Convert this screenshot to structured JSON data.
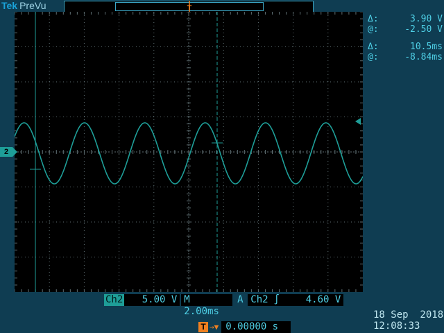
{
  "header": {
    "brand": "Tek",
    "mode": "PreVu"
  },
  "channel_marker": "2",
  "trigger_marker": "T",
  "readouts": {
    "voltage_delta_symbol": "Δ:",
    "voltage_delta": "3.90 V",
    "voltage_at_symbol": "@:",
    "voltage_at": "-2.50 V",
    "time_delta_symbol": "Δ:",
    "time_delta": "10.5ms",
    "time_at_symbol": "@:",
    "time_at": "-8.84ms"
  },
  "status": {
    "channel": "Ch2",
    "volts_per_div": "5.00 V",
    "timebase": "M 2.00ms",
    "trigger_mode": "A",
    "trigger_source": "Ch2",
    "trigger_slope": "∫",
    "trigger_level": "4.60 V"
  },
  "delay": {
    "icon": "T",
    "arrow": "→▼",
    "value": "0.00000 s"
  },
  "datetime": {
    "date": "18 Sep  2018",
    "time": "12:08:33"
  },
  "colors": {
    "trace": "#1e9e98",
    "grid": "#5f6f73",
    "trigger": "#f08020",
    "background": "#0f3d52"
  },
  "icons": [
    "trigger-position-icon",
    "trigger-level-arrow-icon",
    "rising-edge-icon",
    "delay-icon"
  ]
}
